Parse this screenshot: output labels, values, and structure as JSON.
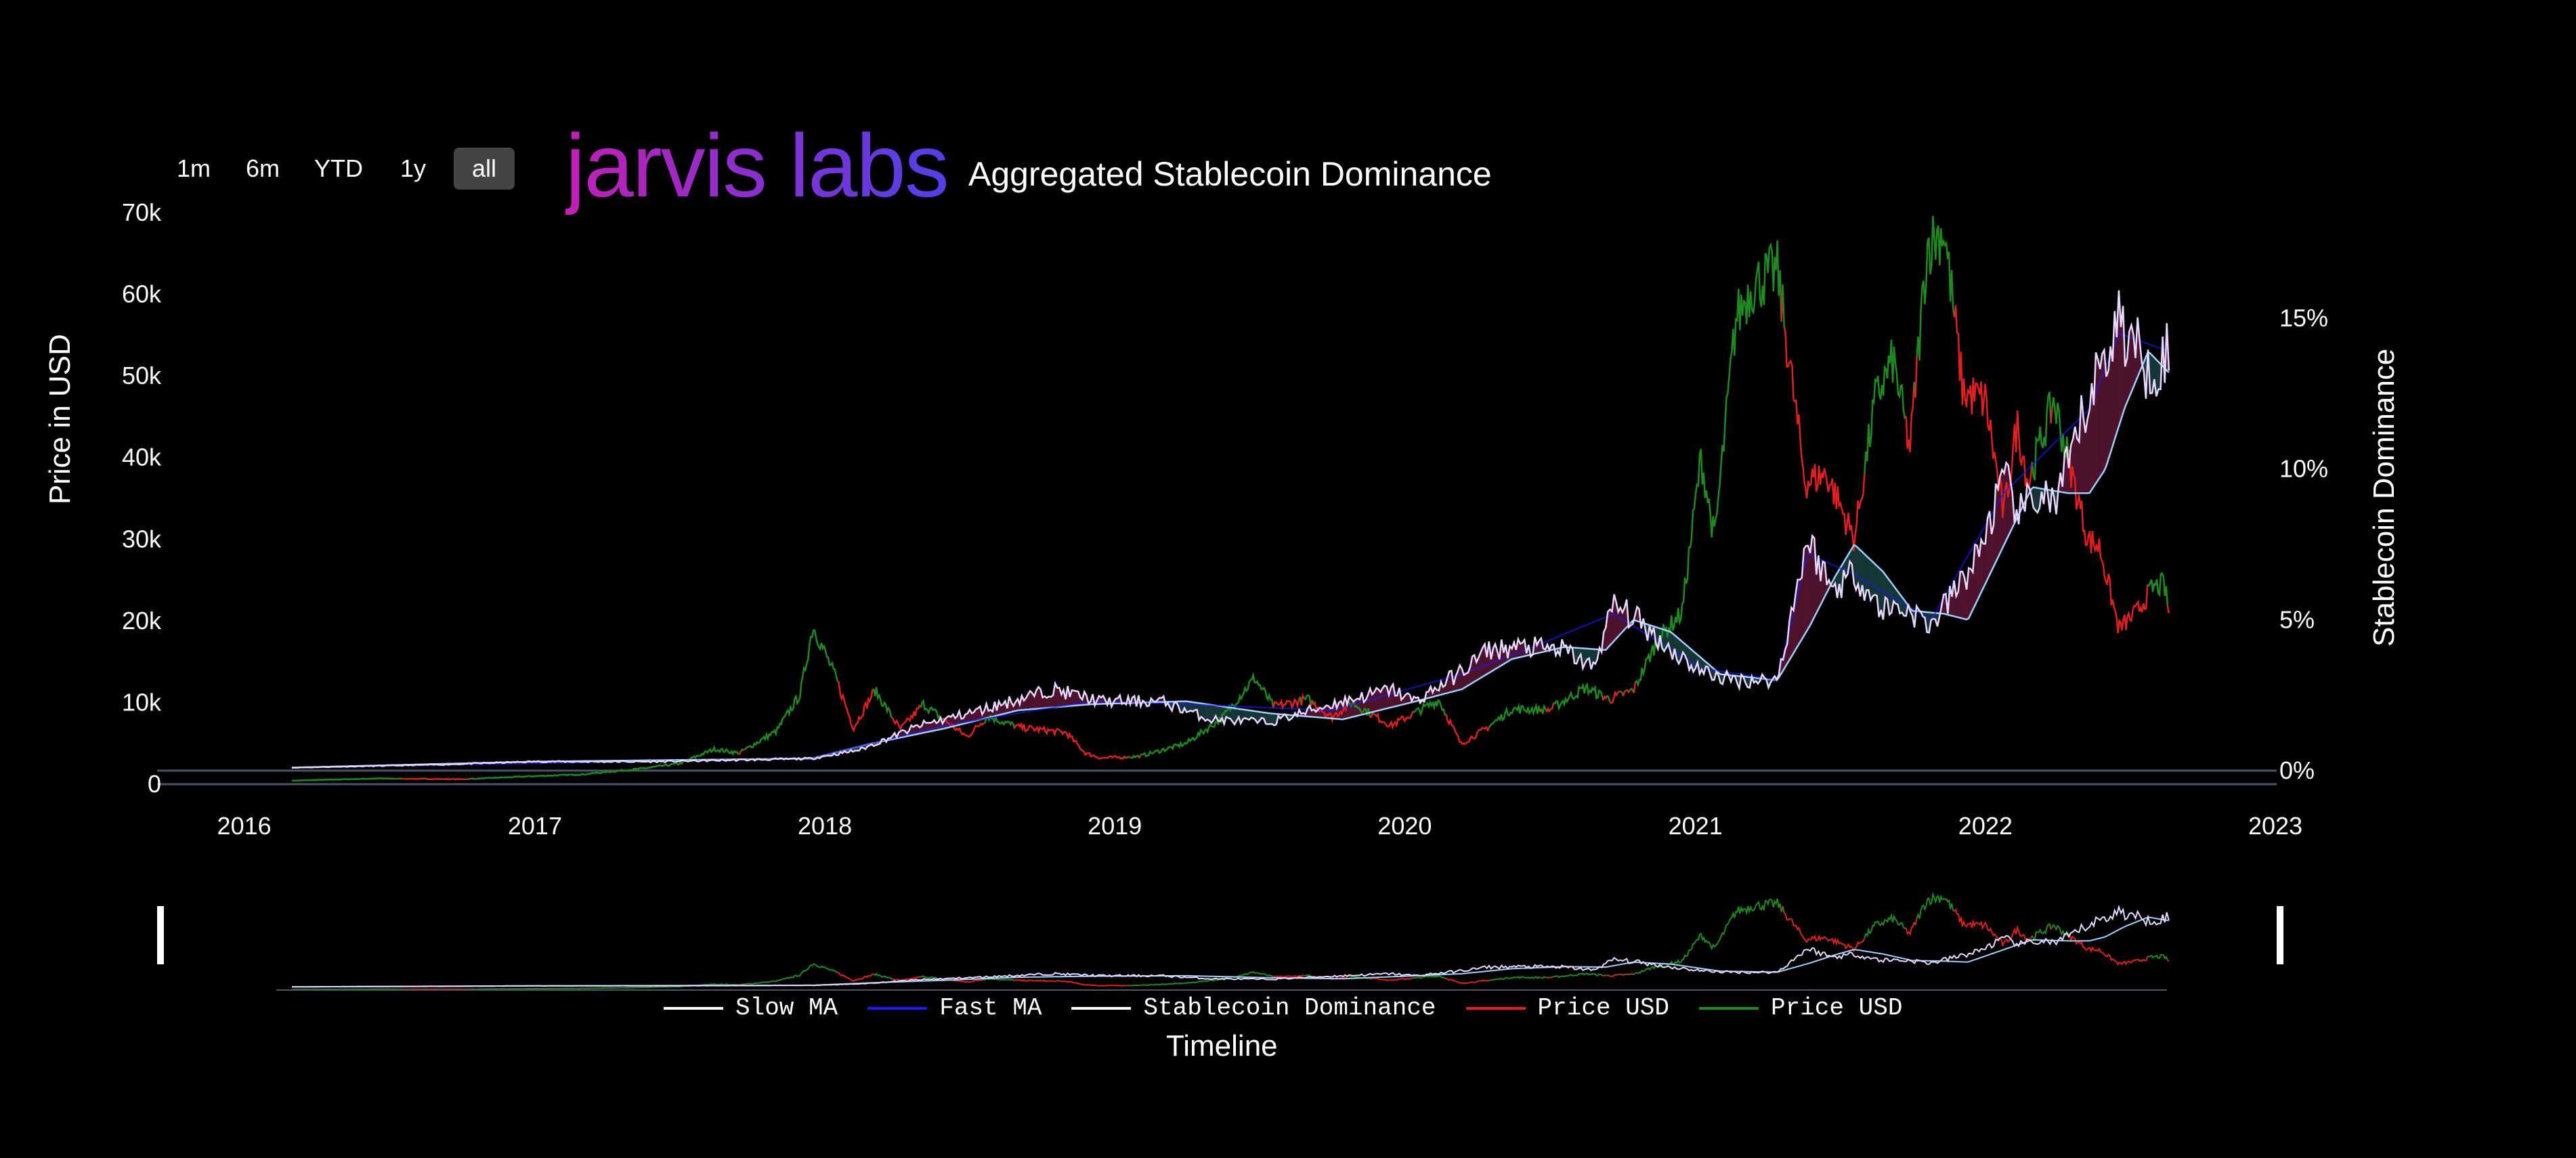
{
  "logo": {
    "text": "jarvis labs",
    "color_start": "#c21fb5",
    "color_end": "#5040e6"
  },
  "range_selector": {
    "buttons": [
      {
        "label": "1m",
        "active": false
      },
      {
        "label": "6m",
        "active": false
      },
      {
        "label": "YTD",
        "active": false
      },
      {
        "label": "1y",
        "active": false
      },
      {
        "label": "all",
        "active": true
      }
    ]
  },
  "chart_data": {
    "type": "line",
    "title": "Aggregated Stablecoin Dominance",
    "xlabel": "Timeline",
    "ylabel": "Price in USD",
    "y2label": "Stablecoin Dominance",
    "x_ticks": [
      "2016",
      "2017",
      "2018",
      "2019",
      "2020",
      "2021",
      "2022",
      "2023"
    ],
    "y_ticks": [
      "0",
      "10k",
      "20k",
      "30k",
      "40k",
      "50k",
      "60k",
      "70k"
    ],
    "y2_ticks": [
      "0%",
      "5%",
      "10%",
      "15%"
    ],
    "xlim": [
      "2015-09-27",
      "2023-01-01"
    ],
    "ylim": [
      0,
      70000
    ],
    "y2lim": [
      0,
      18.5
    ],
    "legend_position": "bottom",
    "series": [
      {
        "name": "Slow MA",
        "color": "#ffffff",
        "axis": "y2"
      },
      {
        "name": "Fast MA",
        "color": "#1a1aff",
        "axis": "y2"
      },
      {
        "name": "Stablecoin Dominance",
        "color": "#ffffff",
        "axis": "y2"
      },
      {
        "name": "Price USD",
        "color": "#e0201f",
        "axis": "y"
      },
      {
        "name": "Price USD",
        "color": "#1f8a1f",
        "axis": "y"
      }
    ],
    "price_usd": {
      "dates": [
        "2016-03-01",
        "2016-06-15",
        "2016-10-01",
        "2017-01-01",
        "2017-03-01",
        "2017-05-15",
        "2017-07-01",
        "2017-08-15",
        "2017-09-15",
        "2017-11-01",
        "2017-12-01",
        "2017-12-17",
        "2018-01-15",
        "2018-02-06",
        "2018-03-05",
        "2018-04-06",
        "2018-05-05",
        "2018-06-29",
        "2018-07-25",
        "2018-09-01",
        "2018-11-01",
        "2018-11-25",
        "2018-12-15",
        "2019-02-01",
        "2019-04-01",
        "2019-05-15",
        "2019-06-26",
        "2019-07-20",
        "2019-09-01",
        "2019-10-01",
        "2019-10-26",
        "2019-12-15",
        "2020-02-13",
        "2020-03-12",
        "2020-04-15",
        "2020-05-15",
        "2020-07-01",
        "2020-08-15",
        "2020-09-15",
        "2020-10-15",
        "2020-11-15",
        "2020-12-15",
        "2021-01-08",
        "2021-01-25",
        "2021-02-21",
        "2021-03-13",
        "2021-04-14",
        "2021-05-19",
        "2021-06-15",
        "2021-07-20",
        "2021-08-15",
        "2021-09-07",
        "2021-09-28",
        "2021-10-20",
        "2021-11-10",
        "2021-12-04",
        "2022-01-01",
        "2022-01-24",
        "2022-02-10",
        "2022-02-24",
        "2022-03-28",
        "2022-04-15",
        "2022-05-10",
        "2022-05-25",
        "2022-06-18",
        "2022-07-10",
        "2022-07-30",
        "2022-08-14",
        "2022-08-20"
      ],
      "values": [
        430,
        700,
        610,
        990,
        1200,
        1900,
        2500,
        4300,
        3800,
        6500,
        11000,
        19400,
        13000,
        6900,
        11500,
        6700,
        9800,
        5800,
        8300,
        7000,
        6300,
        3800,
        3200,
        3400,
        5000,
        8000,
        13000,
        9500,
        10400,
        8200,
        10000,
        7200,
        10300,
        4900,
        7000,
        9200,
        9100,
        11800,
        10400,
        11500,
        17800,
        21000,
        40000,
        30000,
        57000,
        61000,
        63000,
        37000,
        38000,
        30000,
        47000,
        52000,
        41000,
        66000,
        68000,
        48000,
        47000,
        33000,
        44000,
        37000,
        47000,
        40000,
        30000,
        29000,
        19000,
        21000,
        24000,
        24500,
        21000
      ]
    },
    "dominance": {
      "dates": [
        "2016-03-01",
        "2016-09-01",
        "2017-01-01",
        "2017-06-01",
        "2017-12-15",
        "2018-02-15",
        "2018-05-01",
        "2018-07-15",
        "2018-10-15",
        "2018-12-15",
        "2019-03-01",
        "2019-05-01",
        "2019-07-15",
        "2019-10-01",
        "2019-12-15",
        "2020-01-15",
        "2020-03-13",
        "2020-04-15",
        "2020-06-01",
        "2020-07-20",
        "2020-08-25",
        "2020-09-20",
        "2020-10-20",
        "2020-12-01",
        "2021-01-08",
        "2021-02-15",
        "2021-03-15",
        "2021-04-14",
        "2021-05-22",
        "2021-06-22",
        "2021-07-20",
        "2021-08-20",
        "2021-09-21",
        "2021-10-25",
        "2021-11-20",
        "2021-12-20",
        "2022-01-24",
        "2022-02-15",
        "2022-03-10",
        "2022-04-01",
        "2022-05-12",
        "2022-06-18",
        "2022-07-01",
        "2022-07-25",
        "2022-08-20"
      ],
      "values": [
        0.1,
        0.2,
        0.3,
        0.3,
        0.4,
        0.7,
        1.5,
        2.0,
        2.7,
        2.3,
        2.3,
        1.7,
        1.6,
        2.2,
        2.7,
        2.3,
        3.3,
        4.0,
        4.1,
        4.0,
        3.4,
        5.5,
        5.0,
        4.0,
        3.3,
        3.0,
        3.0,
        3.0,
        7.7,
        6.0,
        6.6,
        5.4,
        5.4,
        4.8,
        5.8,
        7.0,
        9.6,
        8.5,
        9.2,
        8.8,
        12.4,
        15.0,
        14.3,
        13.4,
        13.8
      ]
    },
    "slow_ma": {
      "dates": [
        "2016-03-01",
        "2017-01-01",
        "2017-12-15",
        "2018-03-01",
        "2018-06-01",
        "2018-09-01",
        "2018-12-01",
        "2019-04-01",
        "2019-07-15",
        "2019-10-15",
        "2020-01-15",
        "2020-03-13",
        "2020-05-15",
        "2020-07-20",
        "2020-09-10",
        "2020-10-15",
        "2020-12-01",
        "2021-02-01",
        "2021-04-14",
        "2021-05-25",
        "2021-06-25",
        "2021-07-20",
        "2021-08-25",
        "2021-10-01",
        "2021-11-10",
        "2021-12-10",
        "2022-01-01",
        "2022-02-01",
        "2022-03-01",
        "2022-04-15",
        "2022-05-12",
        "2022-06-01",
        "2022-06-25",
        "2022-07-25",
        "2022-08-20"
      ],
      "values": [
        0.1,
        0.3,
        0.4,
        0.9,
        1.4,
        2.0,
        2.2,
        2.3,
        1.9,
        1.7,
        2.3,
        2.7,
        3.7,
        4.1,
        4.0,
        5.0,
        4.6,
        3.2,
        3.0,
        4.8,
        6.4,
        7.5,
        6.6,
        5.3,
        5.2,
        5.0,
        6.2,
        7.9,
        9.4,
        9.2,
        9.2,
        10.0,
        12.0,
        13.9,
        13.2
      ]
    },
    "fast_ma": {
      "dates": [
        "2016-03-01",
        "2017-12-15",
        "2018-06-01",
        "2018-12-01",
        "2019-04-01",
        "2019-10-01",
        "2020-03-13",
        "2020-06-01",
        "2020-09-20",
        "2021-01-08",
        "2021-04-14",
        "2021-05-22",
        "2021-07-20",
        "2021-10-25",
        "2022-01-24",
        "2022-05-12",
        "2022-06-18",
        "2022-08-20"
      ],
      "values": [
        0.1,
        0.4,
        1.5,
        2.3,
        2.2,
        2.0,
        3.2,
        4.0,
        5.2,
        3.4,
        3.0,
        7.2,
        6.5,
        5.0,
        9.2,
        12.0,
        14.5,
        13.9
      ]
    }
  }
}
